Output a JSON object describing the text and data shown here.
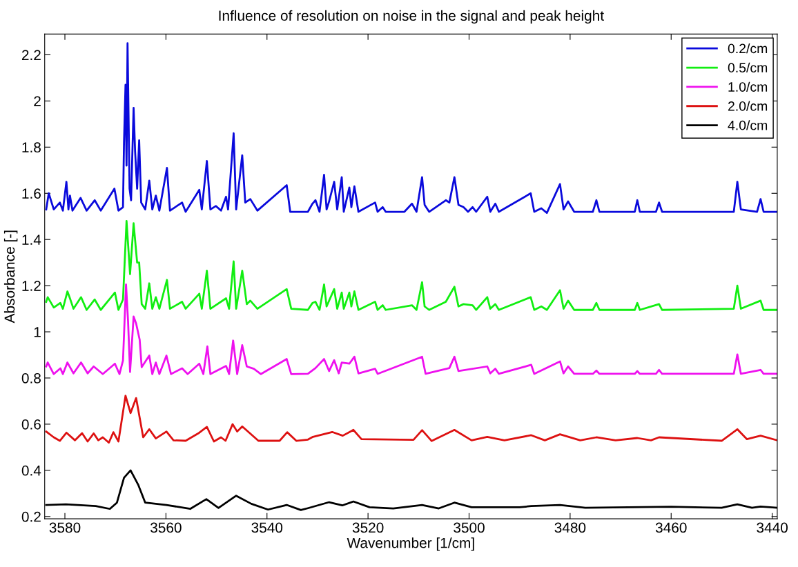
{
  "chart_data": {
    "type": "line",
    "title": "Influence of resolution on noise in the signal and peak height",
    "xlabel": "Wavenumber [1/cm]",
    "ylabel": "Absorbance [-]",
    "xlim": [
      3584,
      3439
    ],
    "xticks": [
      3580,
      3560,
      3540,
      3520,
      3500,
      3480,
      3460,
      3440
    ],
    "ylim": [
      0.19,
      2.29
    ],
    "yticks": [
      0.2,
      0.4,
      0.6,
      0.8,
      1,
      1.2,
      1.4,
      1.6,
      1.8,
      2,
      2.2
    ],
    "grid": false,
    "legend": "top right",
    "series": [
      {
        "name": "0.2/cm",
        "color": "#0a0adc",
        "x": [
          3583.7,
          3583.2,
          3582.2,
          3581.0,
          3580.4,
          3579.7,
          3579.3,
          3579.0,
          3578.5,
          3576.9,
          3575.7,
          3574.1,
          3572.9,
          3570.2,
          3569.4,
          3568.5,
          3568.3,
          3568.0,
          3567.8,
          3567.6,
          3567.2,
          3566.9,
          3566.4,
          3566.1,
          3565.7,
          3565.3,
          3564.9,
          3564.1,
          3563.3,
          3562.7,
          3562.0,
          3561.3,
          3559.8,
          3559.2,
          3556.8,
          3556.1,
          3553.4,
          3552.9,
          3551.9,
          3551.2,
          3550.1,
          3549.1,
          3548.1,
          3547.7,
          3546.6,
          3546.1,
          3544.9,
          3544.3,
          3543.3,
          3541.9,
          3536.1,
          3535.4,
          3531.9,
          3531.0,
          3530.4,
          3529.6,
          3528.7,
          3528.2,
          3527.7,
          3526.7,
          3526.1,
          3525.2,
          3524.8,
          3523.7,
          3523.3,
          3522.7,
          3521.9,
          3518.6,
          3518.1,
          3517.1,
          3516.5,
          3512.8,
          3511.3,
          3510.4,
          3509.3,
          3508.8,
          3507.9,
          3504.6,
          3503.9,
          3502.9,
          3502.1,
          3501.1,
          3500.2,
          3499.3,
          3498.6,
          3496.4,
          3495.8,
          3494.8,
          3494.1,
          3487.8,
          3487.1,
          3485.7,
          3484.6,
          3482.0,
          3481.3,
          3480.4,
          3479.2,
          3475.5,
          3474.8,
          3474.2,
          3467.2,
          3466.7,
          3466.2,
          3463.0,
          3462.4,
          3461.8,
          3447.6,
          3446.9,
          3446.2,
          3443.0,
          3442.3,
          3441.7,
          3439
        ],
        "values": [
          1.53,
          1.6,
          1.53,
          1.56,
          1.525,
          1.65,
          1.53,
          1.59,
          1.525,
          1.58,
          1.525,
          1.57,
          1.525,
          1.62,
          1.525,
          1.54,
          1.82,
          2.07,
          1.72,
          2.25,
          1.62,
          1.57,
          1.97,
          1.78,
          1.62,
          1.83,
          1.56,
          1.53,
          1.655,
          1.53,
          1.59,
          1.525,
          1.71,
          1.525,
          1.56,
          1.52,
          1.615,
          1.53,
          1.74,
          1.53,
          1.545,
          1.525,
          1.585,
          1.53,
          1.86,
          1.53,
          1.765,
          1.56,
          1.575,
          1.525,
          1.635,
          1.52,
          1.52,
          1.555,
          1.57,
          1.52,
          1.68,
          1.53,
          1.565,
          1.65,
          1.53,
          1.67,
          1.52,
          1.625,
          1.54,
          1.63,
          1.52,
          1.56,
          1.52,
          1.54,
          1.52,
          1.52,
          1.555,
          1.52,
          1.67,
          1.55,
          1.52,
          1.57,
          1.56,
          1.67,
          1.55,
          1.54,
          1.52,
          1.54,
          1.52,
          1.585,
          1.52,
          1.555,
          1.52,
          1.6,
          1.52,
          1.535,
          1.515,
          1.64,
          1.53,
          1.565,
          1.52,
          1.52,
          1.57,
          1.52,
          1.52,
          1.57,
          1.52,
          1.52,
          1.56,
          1.52,
          1.52,
          1.65,
          1.53,
          1.52,
          1.575,
          1.52,
          1.52
        ]
      },
      {
        "name": "0.5/cm",
        "color": "#11ee11",
        "x": [
          3583.7,
          3583.4,
          3582.2,
          3580.9,
          3580.4,
          3579.5,
          3579.0,
          3578.3,
          3576.8,
          3575.7,
          3574.1,
          3572.9,
          3570.1,
          3569.4,
          3568.5,
          3567.8,
          3567.1,
          3566.4,
          3565.7,
          3565.3,
          3564.8,
          3564.1,
          3563.3,
          3562.7,
          3562.0,
          3561.3,
          3559.8,
          3559.2,
          3556.8,
          3556.1,
          3553.4,
          3552.9,
          3551.9,
          3551.2,
          3548.1,
          3547.5,
          3546.6,
          3546.1,
          3544.9,
          3544.0,
          3543.3,
          3541.9,
          3536.1,
          3535.2,
          3531.9,
          3531.0,
          3530.4,
          3529.6,
          3528.7,
          3528.2,
          3526.7,
          3526.1,
          3525.2,
          3524.8,
          3523.7,
          3523.3,
          3522.7,
          3521.9,
          3518.6,
          3518.1,
          3517.1,
          3516.5,
          3511.3,
          3510.4,
          3509.3,
          3508.8,
          3507.9,
          3504.6,
          3502.9,
          3502.1,
          3501.1,
          3499.3,
          3498.6,
          3496.4,
          3495.8,
          3494.8,
          3494.1,
          3487.8,
          3487.1,
          3485.7,
          3484.6,
          3482.0,
          3481.3,
          3480.4,
          3479.2,
          3475.5,
          3474.8,
          3474.2,
          3467.2,
          3466.7,
          3466.2,
          3462.4,
          3461.8,
          3447.6,
          3446.9,
          3446.2,
          3442.3,
          3441.7,
          3439
        ],
        "values": [
          1.13,
          1.15,
          1.105,
          1.125,
          1.1,
          1.175,
          1.145,
          1.1,
          1.15,
          1.095,
          1.14,
          1.095,
          1.17,
          1.095,
          1.14,
          1.48,
          1.25,
          1.47,
          1.3,
          1.3,
          1.12,
          1.1,
          1.21,
          1.1,
          1.15,
          1.1,
          1.225,
          1.1,
          1.13,
          1.1,
          1.165,
          1.1,
          1.265,
          1.1,
          1.145,
          1.1,
          1.305,
          1.1,
          1.265,
          1.12,
          1.135,
          1.1,
          1.185,
          1.1,
          1.095,
          1.125,
          1.13,
          1.095,
          1.205,
          1.11,
          1.185,
          1.1,
          1.17,
          1.1,
          1.17,
          1.11,
          1.175,
          1.095,
          1.13,
          1.095,
          1.115,
          1.095,
          1.115,
          1.095,
          1.215,
          1.11,
          1.095,
          1.13,
          1.195,
          1.11,
          1.12,
          1.115,
          1.095,
          1.15,
          1.1,
          1.12,
          1.095,
          1.15,
          1.095,
          1.11,
          1.095,
          1.18,
          1.1,
          1.135,
          1.095,
          1.095,
          1.125,
          1.095,
          1.095,
          1.125,
          1.095,
          1.12,
          1.095,
          1.1,
          1.2,
          1.1,
          1.135,
          1.095,
          1.095
        ]
      },
      {
        "name": "1.0/cm",
        "color": "#ee11ee",
        "x": [
          3583.7,
          3583.4,
          3582.2,
          3580.9,
          3580.4,
          3579.5,
          3578.3,
          3576.8,
          3575.5,
          3574.3,
          3572.5,
          3570.1,
          3569.2,
          3568.5,
          3567.9,
          3567.5,
          3567.1,
          3566.4,
          3565.9,
          3565.2,
          3564.8,
          3563.3,
          3562.7,
          3562.0,
          3561.3,
          3559.9,
          3559.0,
          3556.8,
          3555.7,
          3553.4,
          3552.6,
          3551.8,
          3551.2,
          3548.1,
          3547.5,
          3546.7,
          3545.9,
          3544.9,
          3544.0,
          3542.6,
          3541.2,
          3536.1,
          3535.2,
          3531.9,
          3530.4,
          3528.7,
          3527.7,
          3526.7,
          3525.8,
          3525.2,
          3523.7,
          3522.7,
          3521.9,
          3518.6,
          3518.1,
          3509.3,
          3508.6,
          3503.9,
          3502.9,
          3502.1,
          3496.4,
          3495.8,
          3494.8,
          3494.1,
          3487.7,
          3487.1,
          3482.0,
          3481.3,
          3480.4,
          3479.2,
          3475.5,
          3474.8,
          3474.2,
          3467.2,
          3466.7,
          3466.2,
          3463.0,
          3462.4,
          3461.8,
          3447.6,
          3446.9,
          3446.2,
          3442.3,
          3441.7,
          3439
        ],
        "values": [
          0.85,
          0.867,
          0.817,
          0.842,
          0.817,
          0.867,
          0.82,
          0.867,
          0.82,
          0.85,
          0.817,
          0.862,
          0.817,
          0.876,
          1.205,
          1.046,
          0.826,
          1.066,
          1.036,
          0.966,
          0.847,
          0.897,
          0.817,
          0.867,
          0.817,
          0.897,
          0.817,
          0.842,
          0.817,
          0.862,
          0.817,
          0.937,
          0.817,
          0.852,
          0.817,
          0.962,
          0.817,
          0.942,
          0.85,
          0.84,
          0.817,
          0.882,
          0.817,
          0.818,
          0.843,
          0.882,
          0.83,
          0.877,
          0.82,
          0.867,
          0.862,
          0.892,
          0.82,
          0.84,
          0.818,
          0.892,
          0.818,
          0.843,
          0.892,
          0.83,
          0.85,
          0.82,
          0.84,
          0.818,
          0.857,
          0.818,
          0.872,
          0.82,
          0.85,
          0.818,
          0.818,
          0.832,
          0.818,
          0.818,
          0.83,
          0.818,
          0.818,
          0.835,
          0.818,
          0.818,
          0.902,
          0.818,
          0.835,
          0.818,
          0.818
        ]
      },
      {
        "name": "2.0/cm",
        "color": "#dd1111",
        "x": [
          3583.7,
          3582.2,
          3581.0,
          3579.7,
          3578.0,
          3576.6,
          3575.5,
          3574.3,
          3573.4,
          3572.5,
          3571.3,
          3570.4,
          3569.4,
          3568.0,
          3567.0,
          3565.9,
          3564.5,
          3563.3,
          3562.0,
          3559.9,
          3558.5,
          3556.1,
          3553.6,
          3551.9,
          3550.5,
          3549.1,
          3548.2,
          3546.8,
          3545.9,
          3544.9,
          3541.7,
          3537.5,
          3536.0,
          3534.2,
          3531.9,
          3530.9,
          3527.1,
          3525.0,
          3522.9,
          3521.3,
          3511.0,
          3509.3,
          3507.4,
          3502.9,
          3499.5,
          3496.4,
          3493.0,
          3487.7,
          3485.0,
          3482.0,
          3478.0,
          3474.8,
          3471.0,
          3466.7,
          3464.0,
          3462.4,
          3450.0,
          3446.9,
          3445.0,
          3442.3,
          3439
        ],
        "values": [
          0.568,
          0.543,
          0.528,
          0.563,
          0.53,
          0.561,
          0.525,
          0.56,
          0.53,
          0.543,
          0.52,
          0.565,
          0.525,
          0.723,
          0.648,
          0.713,
          0.543,
          0.578,
          0.538,
          0.568,
          0.53,
          0.528,
          0.56,
          0.588,
          0.525,
          0.543,
          0.528,
          0.6,
          0.568,
          0.59,
          0.528,
          0.528,
          0.565,
          0.528,
          0.533,
          0.545,
          0.566,
          0.55,
          0.575,
          0.535,
          0.532,
          0.574,
          0.527,
          0.575,
          0.53,
          0.545,
          0.53,
          0.552,
          0.53,
          0.556,
          0.53,
          0.543,
          0.53,
          0.54,
          0.53,
          0.543,
          0.528,
          0.578,
          0.535,
          0.55,
          0.53
        ]
      },
      {
        "name": "4.0/cm",
        "color": "#000000",
        "x": [
          3583.7,
          3579.8,
          3573.9,
          3571.1,
          3569.7,
          3568.3,
          3567.0,
          3565.5,
          3564.1,
          3559.9,
          3555.2,
          3552.0,
          3549.6,
          3546.1,
          3543.1,
          3539.8,
          3536.1,
          3533.3,
          3531.9,
          3527.7,
          3525.1,
          3522.9,
          3519.7,
          3515.0,
          3509.3,
          3506.0,
          3502.9,
          3499.5,
          3490.0,
          3487.7,
          3482.0,
          3477.0,
          3460.0,
          3450.0,
          3446.9,
          3444.0,
          3442.3,
          3439
        ],
        "values": [
          0.25,
          0.253,
          0.245,
          0.233,
          0.26,
          0.368,
          0.4,
          0.338,
          0.26,
          0.25,
          0.233,
          0.275,
          0.237,
          0.29,
          0.255,
          0.23,
          0.25,
          0.228,
          0.236,
          0.262,
          0.248,
          0.265,
          0.24,
          0.235,
          0.25,
          0.235,
          0.26,
          0.24,
          0.24,
          0.245,
          0.25,
          0.238,
          0.242,
          0.238,
          0.253,
          0.238,
          0.243,
          0.238
        ]
      }
    ]
  }
}
